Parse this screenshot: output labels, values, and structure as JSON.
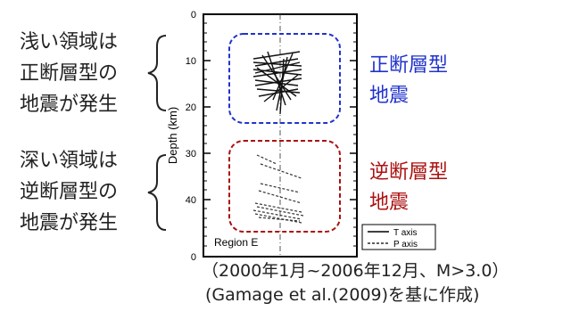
{
  "left_labels": {
    "shallow": [
      "浅い領域は",
      "正断層型の",
      "地震が発生"
    ],
    "deep": [
      "深い領域は",
      "逆断層型の",
      "地震が発生"
    ]
  },
  "right_labels": {
    "normal": [
      "正断層型",
      "地震"
    ],
    "reverse": [
      "逆断層型",
      "地震"
    ]
  },
  "colors": {
    "normal": "#2233cc",
    "reverse": "#aa1111"
  },
  "axis": {
    "ylabel": "Depth (km)",
    "ticks": [
      "0",
      "10",
      "20",
      "30",
      "40",
      "0"
    ]
  },
  "region_label": "Region E",
  "legend": {
    "t_axis": "T axis",
    "p_axis": "P axis"
  },
  "caption": {
    "line1": "（2000年1月~2006年12月、M>3.0）",
    "line2": "(Gamage et al.(2009)を基に作成)"
  }
}
